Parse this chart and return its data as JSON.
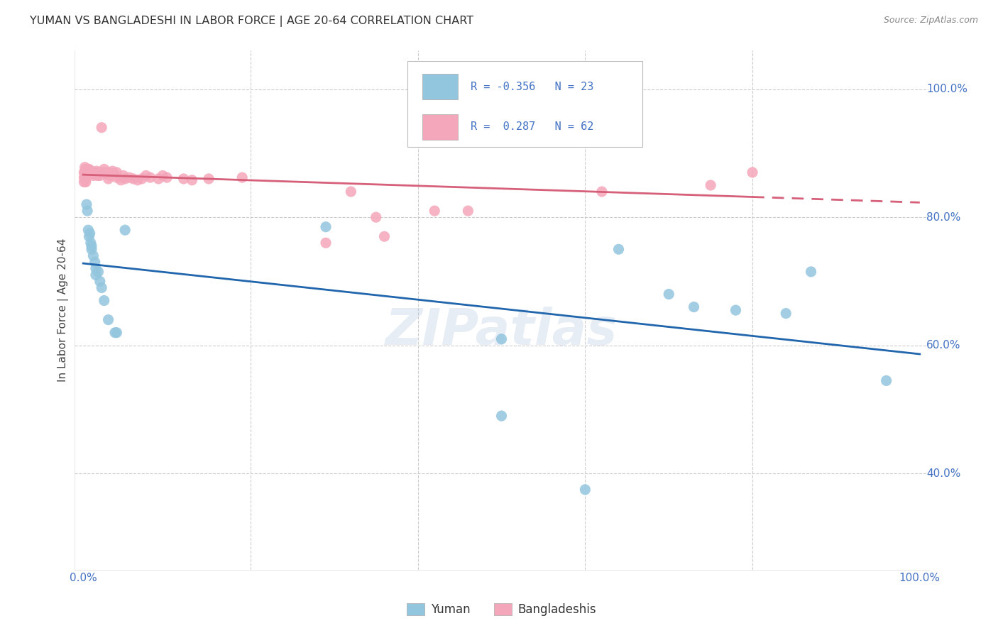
{
  "title": "YUMAN VS BANGLADESHI IN LABOR FORCE | AGE 20-64 CORRELATION CHART",
  "source": "Source: ZipAtlas.com",
  "ylabel": "In Labor Force | Age 20-64",
  "blue_color": "#92c5de",
  "pink_color": "#f4a6ba",
  "blue_line_color": "#2166ac",
  "pink_line_color": "#d6607a",
  "watermark": "ZIPatlas",
  "yuman_points": [
    [
      0.004,
      0.82
    ],
    [
      0.005,
      0.81
    ],
    [
      0.006,
      0.78
    ],
    [
      0.007,
      0.77
    ],
    [
      0.008,
      0.775
    ],
    [
      0.009,
      0.76
    ],
    [
      0.01,
      0.755
    ],
    [
      0.01,
      0.75
    ],
    [
      0.012,
      0.74
    ],
    [
      0.014,
      0.73
    ],
    [
      0.015,
      0.72
    ],
    [
      0.015,
      0.71
    ],
    [
      0.018,
      0.715
    ],
    [
      0.02,
      0.7
    ],
    [
      0.022,
      0.69
    ],
    [
      0.025,
      0.67
    ],
    [
      0.03,
      0.64
    ],
    [
      0.038,
      0.62
    ],
    [
      0.04,
      0.62
    ],
    [
      0.05,
      0.78
    ],
    [
      0.29,
      0.785
    ],
    [
      0.5,
      0.61
    ],
    [
      0.5,
      0.49
    ],
    [
      0.6,
      0.375
    ],
    [
      0.64,
      0.75
    ],
    [
      0.7,
      0.68
    ],
    [
      0.73,
      0.66
    ],
    [
      0.78,
      0.655
    ],
    [
      0.84,
      0.65
    ],
    [
      0.87,
      0.715
    ],
    [
      0.96,
      0.545
    ]
  ],
  "bangladeshi_points": [
    [
      0.001,
      0.87
    ],
    [
      0.001,
      0.862
    ],
    [
      0.001,
      0.855
    ],
    [
      0.002,
      0.878
    ],
    [
      0.002,
      0.87
    ],
    [
      0.002,
      0.865
    ],
    [
      0.003,
      0.875
    ],
    [
      0.003,
      0.87
    ],
    [
      0.003,
      0.865
    ],
    [
      0.003,
      0.86
    ],
    [
      0.003,
      0.855
    ],
    [
      0.004,
      0.872
    ],
    [
      0.004,
      0.868
    ],
    [
      0.004,
      0.863
    ],
    [
      0.005,
      0.875
    ],
    [
      0.005,
      0.87
    ],
    [
      0.005,
      0.865
    ],
    [
      0.006,
      0.87
    ],
    [
      0.007,
      0.875
    ],
    [
      0.007,
      0.868
    ],
    [
      0.008,
      0.872
    ],
    [
      0.009,
      0.868
    ],
    [
      0.01,
      0.872
    ],
    [
      0.01,
      0.868
    ],
    [
      0.012,
      0.865
    ],
    [
      0.014,
      0.87
    ],
    [
      0.015,
      0.868
    ],
    [
      0.016,
      0.872
    ],
    [
      0.017,
      0.865
    ],
    [
      0.018,
      0.87
    ],
    [
      0.02,
      0.865
    ],
    [
      0.022,
      0.87
    ],
    [
      0.025,
      0.875
    ],
    [
      0.025,
      0.87
    ],
    [
      0.028,
      0.868
    ],
    [
      0.03,
      0.87
    ],
    [
      0.03,
      0.86
    ],
    [
      0.032,
      0.865
    ],
    [
      0.035,
      0.872
    ],
    [
      0.037,
      0.868
    ],
    [
      0.04,
      0.87
    ],
    [
      0.04,
      0.862
    ],
    [
      0.045,
      0.858
    ],
    [
      0.048,
      0.865
    ],
    [
      0.05,
      0.86
    ],
    [
      0.055,
      0.862
    ],
    [
      0.06,
      0.86
    ],
    [
      0.065,
      0.858
    ],
    [
      0.07,
      0.86
    ],
    [
      0.075,
      0.865
    ],
    [
      0.08,
      0.862
    ],
    [
      0.09,
      0.86
    ],
    [
      0.095,
      0.865
    ],
    [
      0.1,
      0.862
    ],
    [
      0.12,
      0.86
    ],
    [
      0.13,
      0.858
    ],
    [
      0.15,
      0.86
    ],
    [
      0.19,
      0.862
    ],
    [
      0.022,
      0.94
    ],
    [
      0.29,
      0.76
    ],
    [
      0.32,
      0.84
    ],
    [
      0.35,
      0.8
    ],
    [
      0.36,
      0.77
    ],
    [
      0.42,
      0.81
    ],
    [
      0.46,
      0.81
    ],
    [
      0.56,
      0.96
    ],
    [
      0.62,
      0.84
    ],
    [
      0.75,
      0.85
    ],
    [
      0.8,
      0.87
    ]
  ]
}
